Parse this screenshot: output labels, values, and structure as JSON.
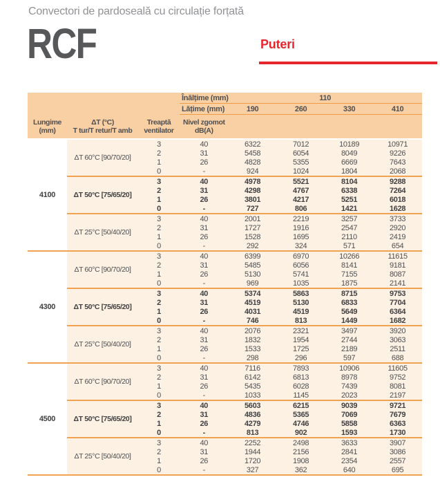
{
  "page": {
    "supertitle": "Convectori de pardoseală cu circulație forțată",
    "product_code": "RCF",
    "section_title": "Puteri"
  },
  "colors": {
    "accent_red": "#e5262c",
    "header_peach": "#f9cfa4",
    "body_peach": "#fcf1e2",
    "line_orange": "#f0a250",
    "text_dark": "#414042",
    "text_gray": "#909295"
  },
  "table": {
    "height_label": "Înălțime (mm)",
    "height_value": "110",
    "width_label": "Lățime (mm)",
    "width_values": [
      "190",
      "260",
      "330",
      "410"
    ],
    "columns": [
      {
        "line1": "Lungime",
        "line2": "(mm)"
      },
      {
        "line1": "ΔT (°C)",
        "line2": "T tur/T retur/T amb"
      },
      {
        "line1": "Treaptă",
        "line2": "ventilator"
      },
      {
        "line1": "Nivel zgomot",
        "line2": "dB(A)"
      }
    ],
    "groups": [
      {
        "length": "4100",
        "blocks": [
          {
            "dt_label": "ΔT 60°C [90/70/20]",
            "bold": false,
            "rows": [
              [
                "3",
                "40",
                "6322",
                "7012",
                "10189",
                "10971"
              ],
              [
                "2",
                "31",
                "5458",
                "6054",
                "8049",
                "9226"
              ],
              [
                "1",
                "26",
                "4828",
                "5355",
                "6669",
                "7643"
              ],
              [
                "0",
                "-",
                "924",
                "1024",
                "1804",
                "2068"
              ]
            ]
          },
          {
            "dt_label": "ΔT 50°C [75/65/20]",
            "bold": true,
            "rows": [
              [
                "3",
                "40",
                "4978",
                "5521",
                "8104",
                "9288"
              ],
              [
                "2",
                "31",
                "4298",
                "4767",
                "6338",
                "7264"
              ],
              [
                "1",
                "26",
                "3801",
                "4217",
                "5251",
                "6018"
              ],
              [
                "0",
                "-",
                "727",
                "806",
                "1421",
                "1628"
              ]
            ]
          },
          {
            "dt_label": "ΔT 25°C [50/40/20]",
            "bold": false,
            "rows": [
              [
                "3",
                "40",
                "2001",
                "2219",
                "3257",
                "3733"
              ],
              [
                "2",
                "31",
                "1727",
                "1916",
                "2547",
                "2920"
              ],
              [
                "1",
                "26",
                "1528",
                "1695",
                "2110",
                "2419"
              ],
              [
                "0",
                "-",
                "292",
                "324",
                "571",
                "654"
              ]
            ]
          }
        ]
      },
      {
        "length": "4300",
        "blocks": [
          {
            "dt_label": "ΔT 60°C [90/70/20]",
            "bold": false,
            "rows": [
              [
                "3",
                "40",
                "6399",
                "6970",
                "10266",
                "11615"
              ],
              [
                "2",
                "31",
                "5485",
                "6056",
                "8141",
                "9181"
              ],
              [
                "1",
                "26",
                "5130",
                "5741",
                "7155",
                "8087"
              ],
              [
                "0",
                "-",
                "969",
                "1035",
                "1875",
                "2141"
              ]
            ]
          },
          {
            "dt_label": "ΔT 50°C [75/65/20]",
            "bold": true,
            "rows": [
              [
                "3",
                "40",
                "5374",
                "5863",
                "8715",
                "9753"
              ],
              [
                "2",
                "31",
                "4519",
                "5130",
                "6833",
                "7704"
              ],
              [
                "1",
                "26",
                "4031",
                "4519",
                "5649",
                "6364"
              ],
              [
                "0",
                "-",
                "746",
                "813",
                "1449",
                "1682"
              ]
            ]
          },
          {
            "dt_label": "ΔT 25°C [50/40/20]",
            "bold": false,
            "rows": [
              [
                "3",
                "40",
                "2076",
                "2321",
                "3497",
                "3920"
              ],
              [
                "2",
                "31",
                "1832",
                "1954",
                "2744",
                "3063"
              ],
              [
                "1",
                "26",
                "1533",
                "1725",
                "2189",
                "2511"
              ],
              [
                "0",
                "-",
                "298",
                "296",
                "597",
                "688"
              ]
            ]
          }
        ]
      },
      {
        "length": "4500",
        "blocks": [
          {
            "dt_label": "ΔT 60°C [90/70/20]",
            "bold": false,
            "rows": [
              [
                "3",
                "40",
                "7116",
                "7893",
                "10906",
                "11605"
              ],
              [
                "2",
                "31",
                "6142",
                "6813",
                "8978",
                "9752"
              ],
              [
                "1",
                "26",
                "5435",
                "6028",
                "7439",
                "8081"
              ],
              [
                "0",
                "-",
                "1033",
                "1145",
                "2023",
                "2197"
              ]
            ]
          },
          {
            "dt_label": "ΔT 50°C [75/65/20]",
            "bold": true,
            "rows": [
              [
                "3",
                "40",
                "5603",
                "6215",
                "9039",
                "9721"
              ],
              [
                "2",
                "31",
                "4836",
                "5365",
                "7069",
                "7679"
              ],
              [
                "1",
                "26",
                "4279",
                "4746",
                "5858",
                "6363"
              ],
              [
                "0",
                "-",
                "813",
                "902",
                "1593",
                "1730"
              ]
            ]
          },
          {
            "dt_label": "ΔT 25°C [50/40/20]",
            "bold": false,
            "rows": [
              [
                "3",
                "40",
                "2252",
                "2498",
                "3633",
                "3907"
              ],
              [
                "2",
                "31",
                "1944",
                "2156",
                "2841",
                "3086"
              ],
              [
                "1",
                "26",
                "1720",
                "1908",
                "2354",
                "2557"
              ],
              [
                "0",
                "-",
                "327",
                "362",
                "640",
                "695"
              ]
            ]
          }
        ]
      }
    ]
  }
}
